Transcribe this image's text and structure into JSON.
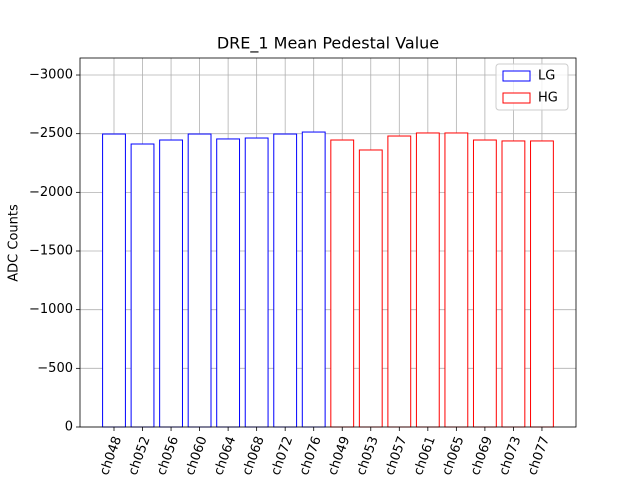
{
  "chart_data": {
    "type": "bar",
    "title": "DRE_1 Mean Pedestal Value",
    "ylabel": "ADC Counts",
    "categories": [
      "ch048",
      "ch052",
      "ch056",
      "ch060",
      "ch064",
      "ch068",
      "ch072",
      "ch076",
      "ch049",
      "ch053",
      "ch057",
      "ch061",
      "ch065",
      "ch069",
      "ch073",
      "ch077"
    ],
    "series": [
      {
        "name": "LG",
        "color": "blue",
        "values": [
          -2497,
          -2412,
          -2446,
          -2497,
          -2455,
          -2463,
          -2497,
          -2514,
          null,
          null,
          null,
          null,
          null,
          null,
          null,
          null
        ]
      },
      {
        "name": "HG",
        "color": "red",
        "values": [
          null,
          null,
          null,
          null,
          null,
          null,
          null,
          null,
          -2446,
          -2361,
          -2480,
          -2506,
          -2506,
          -2446,
          -2438,
          -2438
        ]
      }
    ],
    "ylim": [
      0,
      -3145
    ],
    "yticks": [
      {
        "value": -3000,
        "label": "−3000"
      },
      {
        "value": -2500,
        "label": "−2500"
      },
      {
        "value": -2000,
        "label": "−2000"
      },
      {
        "value": -1500,
        "label": "−1500"
      },
      {
        "value": -1000,
        "label": "−1000"
      },
      {
        "value": -500,
        "label": "−500"
      },
      0
    ],
    "grid": true,
    "legend": "upper right"
  }
}
